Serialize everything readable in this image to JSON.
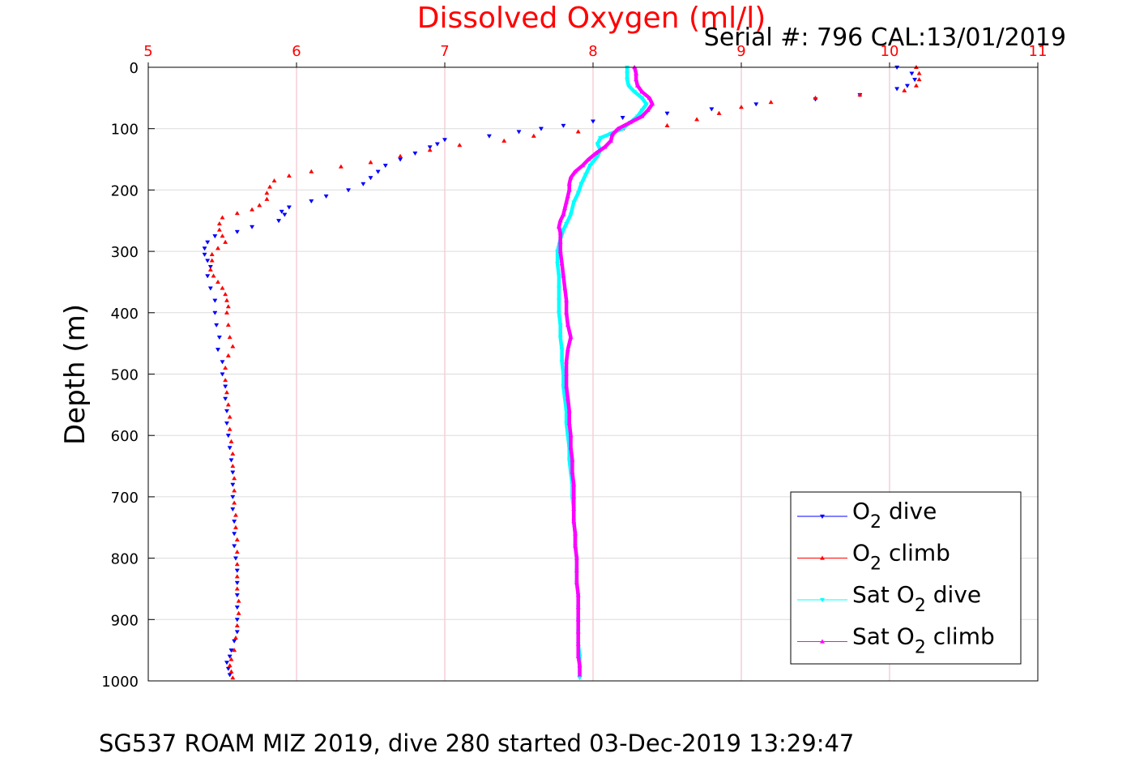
{
  "chart_data": {
    "type": "scatter",
    "title": "Dissolved Oxygen (ml/l)",
    "subtitle": "Serial #: 796  CAL:13/01/2019",
    "caption": "SG537 ROAM MIZ 2019, dive 280 started 03-Dec-2019 13:29:47",
    "xlabel": "",
    "ylabel": "Depth (m)",
    "xlim": [
      5,
      11
    ],
    "ylim": [
      0,
      1000
    ],
    "y_reversed": true,
    "x_axis_position": "top",
    "x_ticks": [
      "5",
      "6",
      "7",
      "8",
      "9",
      "10",
      "11"
    ],
    "y_ticks": [
      "0",
      "100",
      "200",
      "300",
      "400",
      "500",
      "600",
      "700",
      "800",
      "900",
      "1000"
    ],
    "grid": true,
    "legend_position": "bottom-right",
    "colors": {
      "title": "#ff0000",
      "x_tick": "#ff0000",
      "grid": "#f2b6c0"
    },
    "series": [
      {
        "name_prefix": "O",
        "name_sub": "2",
        "name_suffix": " dive",
        "color": "#0000ff",
        "marker": "triangle-down",
        "points": [
          [
            10.05,
            0
          ],
          [
            10.15,
            10
          ],
          [
            10.17,
            20
          ],
          [
            10.12,
            30
          ],
          [
            10.05,
            35
          ],
          [
            9.8,
            45
          ],
          [
            9.5,
            52
          ],
          [
            9.1,
            60
          ],
          [
            8.8,
            68
          ],
          [
            8.5,
            75
          ],
          [
            8.2,
            82
          ],
          [
            8.0,
            88
          ],
          [
            7.8,
            95
          ],
          [
            7.65,
            100
          ],
          [
            7.5,
            105
          ],
          [
            7.3,
            112
          ],
          [
            7.0,
            118
          ],
          [
            6.95,
            125
          ],
          [
            6.9,
            130
          ],
          [
            6.8,
            140
          ],
          [
            6.7,
            150
          ],
          [
            6.6,
            160
          ],
          [
            6.55,
            170
          ],
          [
            6.5,
            180
          ],
          [
            6.45,
            190
          ],
          [
            6.35,
            200
          ],
          [
            6.2,
            210
          ],
          [
            6.1,
            218
          ],
          [
            5.95,
            228
          ],
          [
            5.9,
            235
          ],
          [
            5.92,
            240
          ],
          [
            5.88,
            250
          ],
          [
            5.7,
            260
          ],
          [
            5.6,
            268
          ],
          [
            5.45,
            275
          ],
          [
            5.4,
            285
          ],
          [
            5.38,
            295
          ],
          [
            5.38,
            305
          ],
          [
            5.4,
            315
          ],
          [
            5.42,
            325
          ],
          [
            5.4,
            340
          ],
          [
            5.42,
            360
          ],
          [
            5.45,
            380
          ],
          [
            5.45,
            400
          ],
          [
            5.46,
            420
          ],
          [
            5.48,
            440
          ],
          [
            5.47,
            460
          ],
          [
            5.5,
            480
          ],
          [
            5.5,
            500
          ],
          [
            5.52,
            520
          ],
          [
            5.52,
            540
          ],
          [
            5.53,
            560
          ],
          [
            5.53,
            580
          ],
          [
            5.54,
            600
          ],
          [
            5.55,
            620
          ],
          [
            5.56,
            640
          ],
          [
            5.57,
            660
          ],
          [
            5.57,
            680
          ],
          [
            5.57,
            700
          ],
          [
            5.57,
            720
          ],
          [
            5.58,
            740
          ],
          [
            5.58,
            760
          ],
          [
            5.58,
            780
          ],
          [
            5.59,
            800
          ],
          [
            5.6,
            820
          ],
          [
            5.6,
            840
          ],
          [
            5.6,
            860
          ],
          [
            5.6,
            880
          ],
          [
            5.6,
            900
          ],
          [
            5.6,
            920
          ],
          [
            5.58,
            935
          ],
          [
            5.56,
            950
          ],
          [
            5.55,
            960
          ],
          [
            5.53,
            970
          ],
          [
            5.54,
            980
          ],
          [
            5.55,
            990
          ]
        ]
      },
      {
        "name_prefix": "O",
        "name_sub": "2",
        "name_suffix": " climb",
        "color": "#ff0000",
        "marker": "triangle-up",
        "points": [
          [
            10.18,
            0
          ],
          [
            10.2,
            10
          ],
          [
            10.2,
            20
          ],
          [
            10.18,
            30
          ],
          [
            10.1,
            38
          ],
          [
            9.8,
            45
          ],
          [
            9.5,
            50
          ],
          [
            9.2,
            57
          ],
          [
            9.0,
            65
          ],
          [
            8.85,
            75
          ],
          [
            8.7,
            85
          ],
          [
            8.5,
            95
          ],
          [
            8.2,
            100
          ],
          [
            7.9,
            105
          ],
          [
            7.6,
            112
          ],
          [
            7.4,
            120
          ],
          [
            7.1,
            127
          ],
          [
            6.9,
            135
          ],
          [
            6.7,
            145
          ],
          [
            6.5,
            155
          ],
          [
            6.3,
            162
          ],
          [
            6.1,
            170
          ],
          [
            5.95,
            177
          ],
          [
            5.85,
            185
          ],
          [
            5.82,
            195
          ],
          [
            5.8,
            205
          ],
          [
            5.8,
            215
          ],
          [
            5.75,
            225
          ],
          [
            5.7,
            232
          ],
          [
            5.6,
            238
          ],
          [
            5.5,
            245
          ],
          [
            5.48,
            255
          ],
          [
            5.48,
            265
          ],
          [
            5.5,
            275
          ],
          [
            5.52,
            285
          ],
          [
            5.47,
            295
          ],
          [
            5.43,
            305
          ],
          [
            5.43,
            315
          ],
          [
            5.42,
            330
          ],
          [
            5.44,
            340
          ],
          [
            5.47,
            350
          ],
          [
            5.5,
            360
          ],
          [
            5.52,
            370
          ],
          [
            5.53,
            380
          ],
          [
            5.54,
            390
          ],
          [
            5.53,
            400
          ],
          [
            5.54,
            420
          ],
          [
            5.55,
            440
          ],
          [
            5.57,
            455
          ],
          [
            5.54,
            470
          ],
          [
            5.52,
            490
          ],
          [
            5.52,
            510
          ],
          [
            5.53,
            530
          ],
          [
            5.54,
            550
          ],
          [
            5.55,
            570
          ],
          [
            5.55,
            590
          ],
          [
            5.56,
            610
          ],
          [
            5.57,
            630
          ],
          [
            5.57,
            650
          ],
          [
            5.58,
            670
          ],
          [
            5.58,
            690
          ],
          [
            5.58,
            710
          ],
          [
            5.59,
            730
          ],
          [
            5.59,
            750
          ],
          [
            5.6,
            770
          ],
          [
            5.6,
            790
          ],
          [
            5.6,
            810
          ],
          [
            5.6,
            830
          ],
          [
            5.6,
            850
          ],
          [
            5.61,
            870
          ],
          [
            5.61,
            890
          ],
          [
            5.6,
            910
          ],
          [
            5.59,
            930
          ],
          [
            5.58,
            950
          ],
          [
            5.56,
            965
          ],
          [
            5.55,
            975
          ],
          [
            5.56,
            985
          ],
          [
            5.57,
            995
          ]
        ]
      },
      {
        "name_prefix": "Sat O",
        "name_sub": "2",
        "name_suffix": " dive",
        "color": "#00ffff",
        "marker": "triangle-down",
        "points": [
          [
            8.23,
            0
          ],
          [
            8.23,
            10
          ],
          [
            8.23,
            20
          ],
          [
            8.24,
            30
          ],
          [
            8.28,
            40
          ],
          [
            8.33,
            50
          ],
          [
            8.36,
            60
          ],
          [
            8.33,
            70
          ],
          [
            8.3,
            80
          ],
          [
            8.25,
            90
          ],
          [
            8.2,
            100
          ],
          [
            8.12,
            108
          ],
          [
            8.05,
            115
          ],
          [
            8.03,
            125
          ],
          [
            8.05,
            135
          ],
          [
            8.03,
            145
          ],
          [
            7.98,
            160
          ],
          [
            7.95,
            175
          ],
          [
            7.92,
            190
          ],
          [
            7.9,
            205
          ],
          [
            7.87,
            220
          ],
          [
            7.85,
            240
          ],
          [
            7.82,
            255
          ],
          [
            7.8,
            265
          ],
          [
            7.78,
            280
          ],
          [
            7.76,
            300
          ],
          [
            7.76,
            320
          ],
          [
            7.77,
            340
          ],
          [
            7.77,
            360
          ],
          [
            7.77,
            380
          ],
          [
            7.77,
            400
          ],
          [
            7.78,
            420
          ],
          [
            7.78,
            440
          ],
          [
            7.79,
            460
          ],
          [
            7.79,
            480
          ],
          [
            7.8,
            500
          ],
          [
            7.8,
            520
          ],
          [
            7.81,
            540
          ],
          [
            7.82,
            560
          ],
          [
            7.82,
            580
          ],
          [
            7.83,
            600
          ],
          [
            7.84,
            620
          ],
          [
            7.84,
            640
          ],
          [
            7.85,
            660
          ],
          [
            7.86,
            680
          ],
          [
            7.86,
            700
          ],
          [
            7.87,
            720
          ],
          [
            7.87,
            740
          ],
          [
            7.88,
            760
          ],
          [
            7.88,
            780
          ],
          [
            7.89,
            800
          ],
          [
            7.89,
            820
          ],
          [
            7.89,
            840
          ],
          [
            7.9,
            860
          ],
          [
            7.9,
            880
          ],
          [
            7.9,
            900
          ],
          [
            7.9,
            920
          ],
          [
            7.9,
            940
          ],
          [
            7.91,
            960
          ],
          [
            7.91,
            980
          ],
          [
            7.91,
            995
          ]
        ]
      },
      {
        "name_prefix": "Sat O",
        "name_sub": "2",
        "name_suffix": " climb",
        "color": "#ff00ff",
        "marker": "triangle-up",
        "points": [
          [
            8.28,
            0
          ],
          [
            8.29,
            10
          ],
          [
            8.29,
            20
          ],
          [
            8.3,
            30
          ],
          [
            8.33,
            40
          ],
          [
            8.38,
            50
          ],
          [
            8.4,
            60
          ],
          [
            8.37,
            70
          ],
          [
            8.33,
            80
          ],
          [
            8.25,
            90
          ],
          [
            8.17,
            100
          ],
          [
            8.13,
            110
          ],
          [
            8.12,
            120
          ],
          [
            8.08,
            130
          ],
          [
            8.02,
            140
          ],
          [
            7.97,
            150
          ],
          [
            7.93,
            160
          ],
          [
            7.88,
            170
          ],
          [
            7.85,
            180
          ],
          [
            7.84,
            190
          ],
          [
            7.84,
            200
          ],
          [
            7.83,
            210
          ],
          [
            7.82,
            220
          ],
          [
            7.81,
            230
          ],
          [
            7.8,
            240
          ],
          [
            7.78,
            250
          ],
          [
            7.77,
            260
          ],
          [
            7.78,
            270
          ],
          [
            7.78,
            285
          ],
          [
            7.78,
            300
          ],
          [
            7.79,
            320
          ],
          [
            7.8,
            340
          ],
          [
            7.81,
            360
          ],
          [
            7.82,
            380
          ],
          [
            7.82,
            400
          ],
          [
            7.83,
            420
          ],
          [
            7.85,
            440
          ],
          [
            7.83,
            460
          ],
          [
            7.82,
            480
          ],
          [
            7.82,
            500
          ],
          [
            7.82,
            520
          ],
          [
            7.83,
            540
          ],
          [
            7.84,
            560
          ],
          [
            7.84,
            580
          ],
          [
            7.85,
            600
          ],
          [
            7.85,
            620
          ],
          [
            7.86,
            640
          ],
          [
            7.86,
            660
          ],
          [
            7.87,
            680
          ],
          [
            7.87,
            700
          ],
          [
            7.87,
            720
          ],
          [
            7.87,
            740
          ],
          [
            7.88,
            760
          ],
          [
            7.88,
            780
          ],
          [
            7.89,
            800
          ],
          [
            7.89,
            820
          ],
          [
            7.89,
            840
          ],
          [
            7.9,
            860
          ],
          [
            7.9,
            880
          ],
          [
            7.9,
            900
          ],
          [
            7.9,
            920
          ],
          [
            7.9,
            940
          ],
          [
            7.9,
            960
          ],
          [
            7.91,
            975
          ],
          [
            7.91,
            990
          ]
        ]
      }
    ]
  }
}
